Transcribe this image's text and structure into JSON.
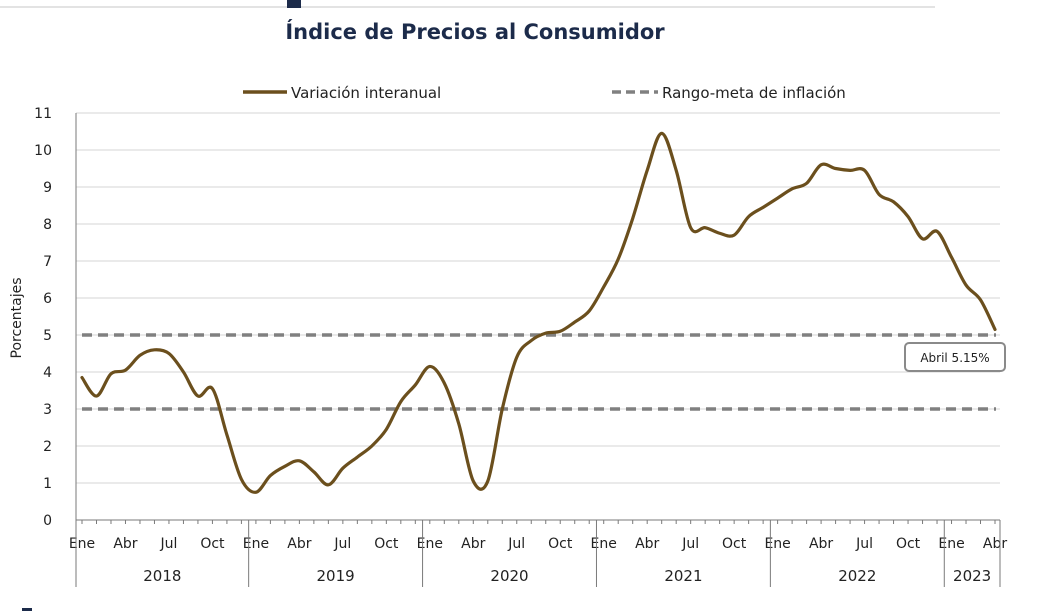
{
  "title": "Índice de Precios al Consumidor",
  "colors": {
    "series": "#6b4f1d",
    "target": "#808080",
    "title": "#1c2b4a",
    "grid": "#d6d6d6"
  },
  "chart_data": {
    "type": "line",
    "title": "Índice de Precios al Consumidor",
    "ylabel": "Porcentajes",
    "xlabel": "",
    "ylim": [
      0,
      11
    ],
    "y_ticks": [
      0,
      1,
      2,
      3,
      4,
      5,
      6,
      7,
      8,
      9,
      10,
      11
    ],
    "grid": "horizontal",
    "legend_position": "top",
    "legend": [
      "Variación interanual",
      "Rango-meta de inflación"
    ],
    "month_tick_labels": [
      "Ene",
      "Abr",
      "Jul",
      "Oct"
    ],
    "years": [
      "2018",
      "2019",
      "2020",
      "2021",
      "2022",
      "2023"
    ],
    "series": [
      {
        "name": "Variación interanual",
        "style": "solid",
        "x": [
          "2018-01",
          "2018-02",
          "2018-03",
          "2018-04",
          "2018-05",
          "2018-06",
          "2018-07",
          "2018-08",
          "2018-09",
          "2018-10",
          "2018-11",
          "2018-12",
          "2019-01",
          "2019-02",
          "2019-03",
          "2019-04",
          "2019-05",
          "2019-06",
          "2019-07",
          "2019-08",
          "2019-09",
          "2019-10",
          "2019-11",
          "2019-12",
          "2020-01",
          "2020-02",
          "2020-03",
          "2020-04",
          "2020-05",
          "2020-06",
          "2020-07",
          "2020-08",
          "2020-09",
          "2020-10",
          "2020-11",
          "2020-12",
          "2021-01",
          "2021-02",
          "2021-03",
          "2021-04",
          "2021-05",
          "2021-06",
          "2021-07",
          "2021-08",
          "2021-09",
          "2021-10",
          "2021-11",
          "2021-12",
          "2022-01",
          "2022-02",
          "2022-03",
          "2022-04",
          "2022-05",
          "2022-06",
          "2022-07",
          "2022-08",
          "2022-09",
          "2022-10",
          "2022-11",
          "2022-12",
          "2023-01",
          "2023-02",
          "2023-03",
          "2023-04"
        ],
        "values": [
          3.85,
          3.35,
          3.95,
          4.05,
          4.45,
          4.6,
          4.5,
          4.0,
          3.35,
          3.55,
          2.3,
          1.1,
          0.75,
          1.2,
          1.45,
          1.6,
          1.3,
          0.95,
          1.4,
          1.7,
          2.0,
          2.45,
          3.2,
          3.65,
          4.15,
          3.7,
          2.6,
          1.05,
          1.05,
          3.0,
          4.4,
          4.85,
          5.05,
          5.1,
          5.35,
          5.65,
          6.3,
          7.05,
          8.15,
          9.45,
          10.45,
          9.45,
          7.9,
          7.9,
          7.75,
          7.7,
          8.2,
          8.45,
          8.7,
          8.95,
          9.1,
          9.6,
          9.5,
          9.45,
          9.45,
          8.8,
          8.6,
          8.2,
          7.6,
          7.8,
          7.1,
          6.35,
          5.95,
          5.15
        ]
      },
      {
        "name": "Rango-meta de inflación",
        "style": "dashed",
        "values": [
          3,
          5
        ]
      }
    ],
    "annotation": "Abril 5.15%"
  }
}
